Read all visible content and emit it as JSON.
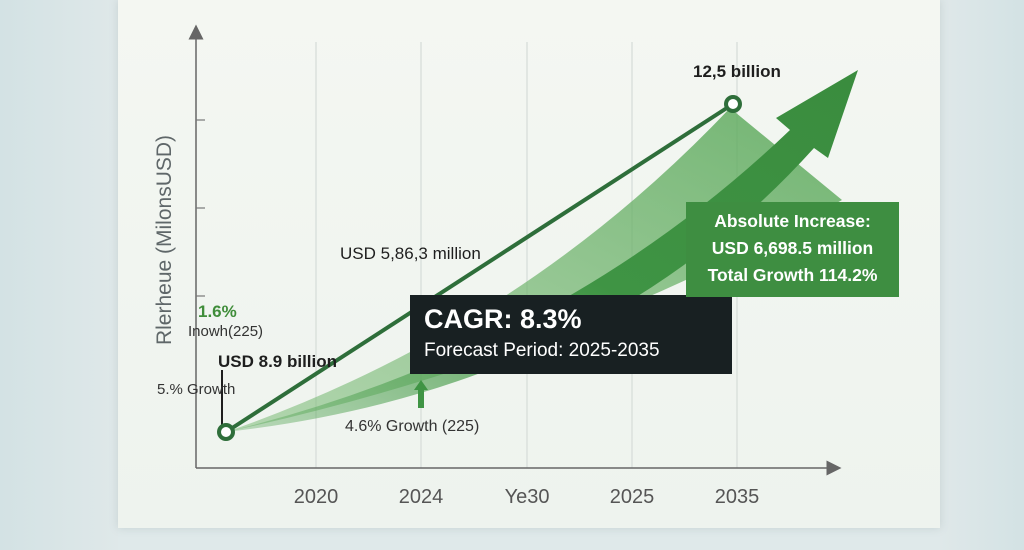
{
  "chart_data": {
    "type": "line",
    "title": "",
    "ylabel": "Rlerheue (MilonsUSD)",
    "xlabel": "",
    "x_tick_labels": [
      "2020",
      "2024",
      "Ye30",
      "2025",
      "2035"
    ],
    "series": [
      {
        "points": [
          {
            "x": "start",
            "y": 8.9
          },
          {
            "x": "2035",
            "y": 12.5
          }
        ]
      }
    ],
    "grid": "vertical",
    "annotations": {
      "end_value": "12,5 billion",
      "mid_value": "USD 5,86,3 million",
      "start_value": "USD 8.9 billion",
      "left_pct": "1.6%",
      "left_pct_sub": "Inowh(225)",
      "left_growth": "5.% Growth",
      "bottom_growth": "4.6% Growth (225)",
      "cagr_title": "CAGR: 8.3%",
      "cagr_sub": "Forecast Period: 2025-2035",
      "abs_line1": "Absolute Increase:",
      "abs_line2": "USD 6,698.5 million",
      "abs_line3": "Total Growth 114.2%"
    },
    "colors": {
      "line": "#2e6e3a",
      "arrow_fill": "#3f9444",
      "area_fill": "#5aa85a",
      "cagr_box": "#182022",
      "abs_box": "#3e8e41"
    }
  }
}
